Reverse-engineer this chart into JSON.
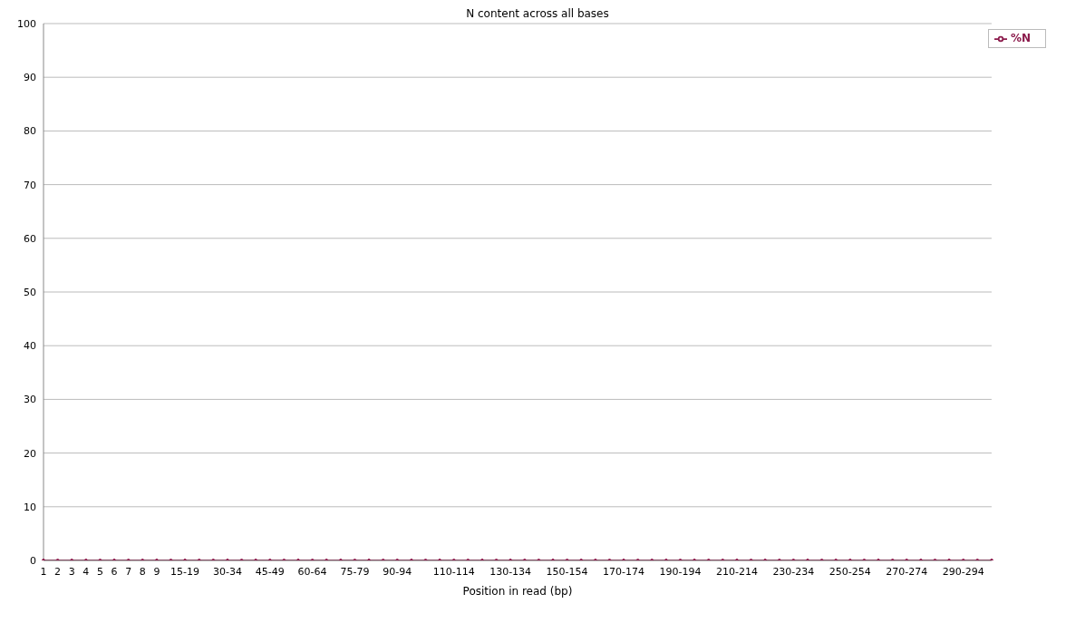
{
  "chart_data": {
    "type": "line",
    "title": "N content across all bases",
    "xlabel": "Position in read (bp)",
    "categories": [
      "1",
      "2",
      "3",
      "4",
      "5",
      "6",
      "7",
      "8",
      "9",
      null,
      "15-19",
      null,
      null,
      "30-34",
      null,
      null,
      "45-49",
      null,
      null,
      "60-64",
      null,
      null,
      "75-79",
      null,
      null,
      "90-94",
      null,
      null,
      null,
      "110-114",
      null,
      null,
      null,
      "130-134",
      null,
      null,
      null,
      "150-154",
      null,
      null,
      null,
      "170-174",
      null,
      null,
      null,
      "190-194",
      null,
      null,
      null,
      "210-214",
      null,
      null,
      null,
      "230-234",
      null,
      null,
      null,
      "250-254",
      null,
      null,
      null,
      "270-274",
      null,
      null,
      null,
      "290-294",
      null,
      null
    ],
    "series": [
      {
        "name": "%N",
        "color": "#8b1a4b",
        "values": [
          0,
          0,
          0,
          0,
          0,
          0,
          0,
          0,
          0,
          0,
          0,
          0,
          0,
          0,
          0,
          0,
          0,
          0,
          0,
          0,
          0,
          0,
          0,
          0,
          0,
          0,
          0,
          0,
          0,
          0,
          0,
          0,
          0,
          0,
          0,
          0,
          0,
          0,
          0,
          0,
          0,
          0,
          0,
          0,
          0,
          0,
          0,
          0,
          0,
          0,
          0,
          0,
          0,
          0,
          0,
          0,
          0,
          0,
          0,
          0,
          0,
          0,
          0,
          0,
          0,
          0,
          0,
          0
        ]
      }
    ],
    "ylim": [
      0,
      100
    ],
    "yticks": [
      0,
      10,
      20,
      30,
      40,
      50,
      60,
      70,
      80,
      90,
      100
    ],
    "grid": "y",
    "legend": "top right",
    "marker": "circle",
    "line_style": "solid"
  }
}
